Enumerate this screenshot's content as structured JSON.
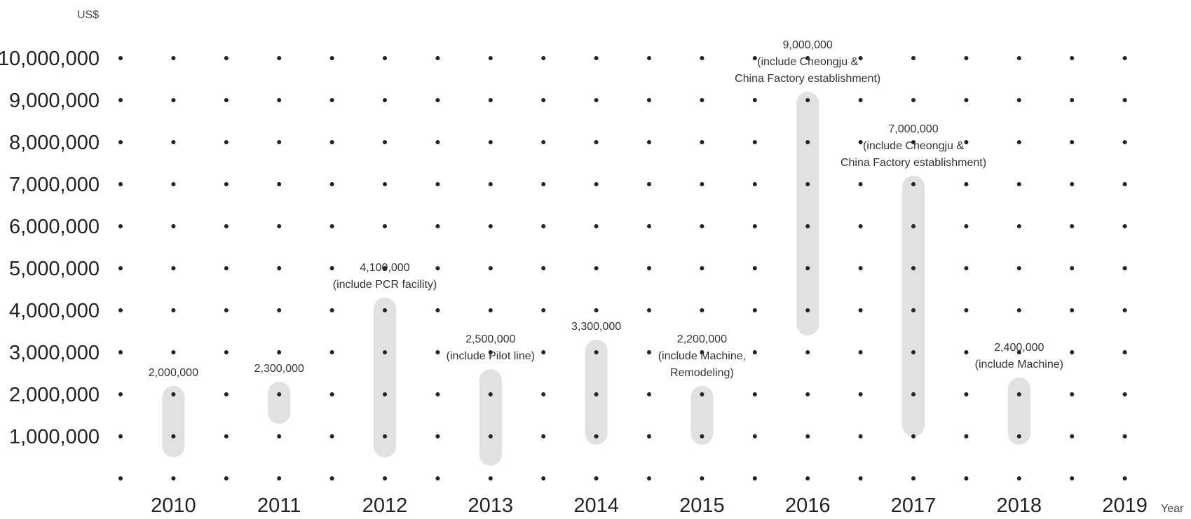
{
  "chart_data": {
    "type": "bar",
    "ylabel": "US$",
    "xlabel": "Year",
    "ylim": [
      0,
      10000000
    ],
    "y_ticks": [
      "10,000,000",
      "9,000,000",
      "8,000,000",
      "7,000,000",
      "6,000,000",
      "5,000,000",
      "4,000,000",
      "3,000,000",
      "2,000,000",
      "1,000,000"
    ],
    "categories": [
      "2010",
      "2011",
      "2012",
      "2013",
      "2014",
      "2015",
      "2016",
      "2017",
      "2018",
      "2019"
    ],
    "bars": [
      {
        "year": "2010",
        "value": 2000000,
        "low": 500000,
        "high": 2200000,
        "label": [
          "2,000,000"
        ]
      },
      {
        "year": "2011",
        "value": 2300000,
        "low": 1300000,
        "high": 2300000,
        "label": [
          "2,300,000"
        ]
      },
      {
        "year": "2012",
        "value": 4100000,
        "low": 500000,
        "high": 4300000,
        "label": [
          "4,100,000",
          "(include PCR facility)"
        ]
      },
      {
        "year": "2013",
        "value": 2500000,
        "low": 300000,
        "high": 2600000,
        "label": [
          "2,500,000",
          "(include Pilot line)"
        ]
      },
      {
        "year": "2014",
        "value": 3300000,
        "low": 800000,
        "high": 3300000,
        "label": [
          "3,300,000"
        ]
      },
      {
        "year": "2015",
        "value": 2200000,
        "low": 800000,
        "high": 2200000,
        "label": [
          "2,200,000",
          "(include Machine,",
          "Remodeling)"
        ]
      },
      {
        "year": "2016",
        "value": 9000000,
        "low": 3400000,
        "high": 9200000,
        "label": [
          "9,000,000",
          "(include Cheongju &",
          "China Factory establishment)"
        ]
      },
      {
        "year": "2017",
        "value": 7000000,
        "low": 1000000,
        "high": 7200000,
        "label": [
          "7,000,000",
          "(include Cheongju &",
          "China Factory establishment)"
        ]
      },
      {
        "year": "2018",
        "value": 2400000,
        "low": 800000,
        "high": 2400000,
        "label": [
          "2,400,000",
          "(include Machine)"
        ]
      }
    ],
    "grid": "dots",
    "colors": {
      "bar": "#e1e1e1",
      "dot": "#222222",
      "text": "#222222"
    }
  }
}
